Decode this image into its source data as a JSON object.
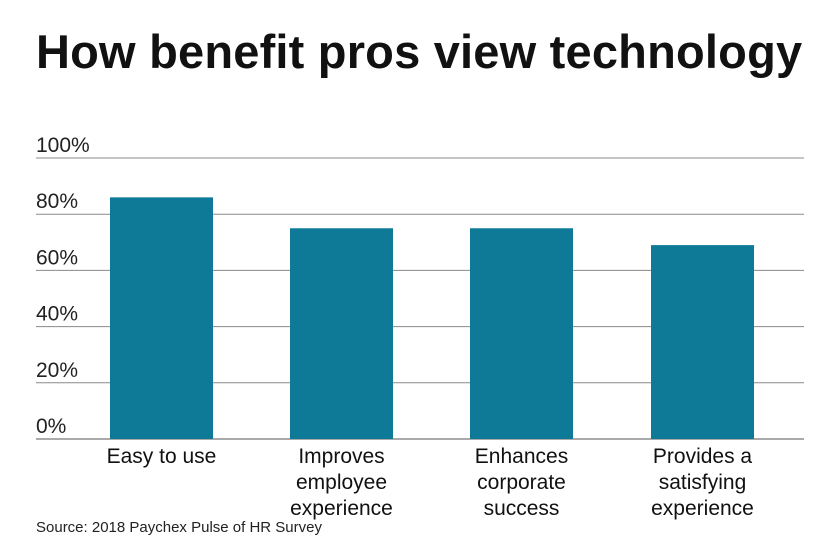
{
  "title": "How benefit pros view technology",
  "source": "Source: 2018 Paychex Pulse of HR Survey",
  "colors": {
    "bar": "#0e7a97",
    "grid": "#8a8a8a",
    "axis": "#555555"
  },
  "chart_data": {
    "type": "bar",
    "title": "How benefit pros view technology",
    "categories": [
      [
        "Easy to use"
      ],
      [
        "Improves",
        "employee",
        "experience"
      ],
      [
        "Enhances",
        "corporate",
        "success"
      ],
      [
        "Provides a",
        "satisfying",
        "experience"
      ]
    ],
    "values": [
      86,
      75,
      75,
      69
    ],
    "yticks": [
      "0%",
      "20%",
      "40%",
      "60%",
      "80%",
      "100%"
    ],
    "ylim": [
      0,
      100
    ],
    "xlabel": "",
    "ylabel": "",
    "grid": true
  }
}
